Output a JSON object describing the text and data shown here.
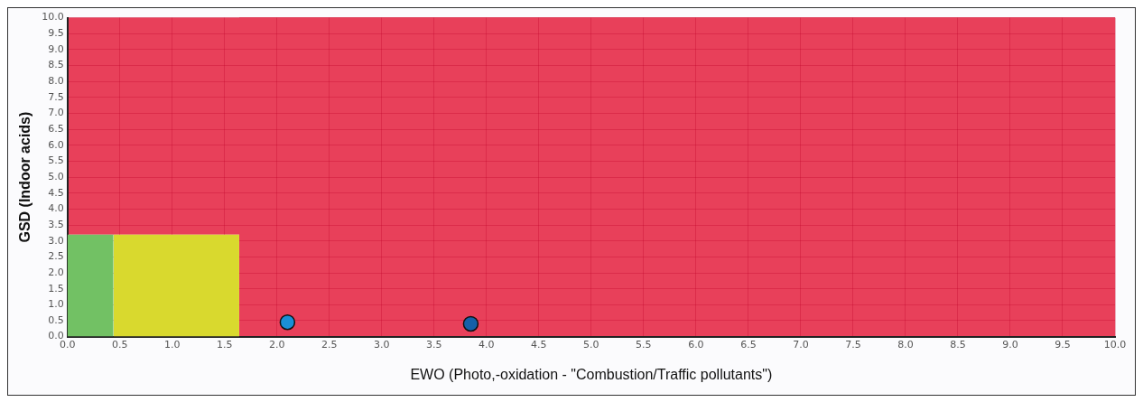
{
  "chart_data": {
    "type": "scatter",
    "xlabel": "EWO (Photo,-oxidation - \"Combustion/Traffic pollutants\")",
    "ylabel": "GSD (Indoor acids)",
    "xlim": [
      0,
      10
    ],
    "ylim": [
      0,
      10
    ],
    "xticks": [
      {
        "value": 0,
        "label": "0.0"
      },
      {
        "value": 0.5,
        "label": "0.5"
      },
      {
        "value": 1,
        "label": "1.0"
      },
      {
        "value": 1.5,
        "label": "1.5"
      },
      {
        "value": 2,
        "label": "2.0"
      },
      {
        "value": 2.5,
        "label": "2.5"
      },
      {
        "value": 3,
        "label": "3.0"
      },
      {
        "value": 3.5,
        "label": "3.5"
      },
      {
        "value": 4,
        "label": "4.0"
      },
      {
        "value": 4.5,
        "label": "4.5"
      },
      {
        "value": 5,
        "label": "5.0"
      },
      {
        "value": 5.5,
        "label": "5.5"
      },
      {
        "value": 6,
        "label": "6.0"
      },
      {
        "value": 6.5,
        "label": "6.5"
      },
      {
        "value": 7,
        "label": "7.0"
      },
      {
        "value": 7.5,
        "label": "7.5"
      },
      {
        "value": 8,
        "label": "8.0"
      },
      {
        "value": 8.5,
        "label": "8.5"
      },
      {
        "value": 9,
        "label": "9.0"
      },
      {
        "value": 9.5,
        "label": "9.5"
      },
      {
        "value": 10,
        "label": "10.0"
      }
    ],
    "yticks": [
      {
        "value": 0,
        "label": "0.0"
      },
      {
        "value": 0.5,
        "label": "0.5"
      },
      {
        "value": 1,
        "label": "1.0"
      },
      {
        "value": 1.5,
        "label": "1.5"
      },
      {
        "value": 2,
        "label": "2.0"
      },
      {
        "value": 2.5,
        "label": "2.5"
      },
      {
        "value": 3,
        "label": "3.0"
      },
      {
        "value": 3.5,
        "label": "3.5"
      },
      {
        "value": 4,
        "label": "4.0"
      },
      {
        "value": 4.5,
        "label": "4.5"
      },
      {
        "value": 5,
        "label": "5.0"
      },
      {
        "value": 5.5,
        "label": "5.5"
      },
      {
        "value": 6,
        "label": "6.0"
      },
      {
        "value": 6.5,
        "label": "6.5"
      },
      {
        "value": 7,
        "label": "7.0"
      },
      {
        "value": 7.5,
        "label": "7.5"
      },
      {
        "value": 8,
        "label": "8.0"
      },
      {
        "value": 8.5,
        "label": "8.5"
      },
      {
        "value": 9,
        "label": "9.0"
      },
      {
        "value": 9.5,
        "label": "9.5"
      },
      {
        "value": 10,
        "label": "10.0"
      }
    ],
    "bands": [
      {
        "axis": "x",
        "from": 1.64,
        "to": 10,
        "color": "#e8405a"
      },
      {
        "axis": "y",
        "from": 3.2,
        "to": 10,
        "color": "#e8405a"
      }
    ],
    "grid": true,
    "legend": false,
    "marker": "circle",
    "series": [
      {
        "type": "area",
        "marker": "none",
        "color": "#72c164",
        "x": [
          0,
          0.44
        ],
        "values": [
          3.2,
          3.2
        ]
      },
      {
        "type": "area",
        "marker": "none",
        "color": "#d9d92e",
        "x": [
          0.44,
          1.64
        ],
        "values": [
          3.2,
          3.2
        ]
      },
      {
        "color": "#1a8fd6",
        "x": [
          2.1
        ],
        "values": [
          0.45
        ]
      },
      {
        "color": "#1560a8",
        "x": [
          3.85
        ],
        "values": [
          0.4
        ]
      }
    ]
  }
}
